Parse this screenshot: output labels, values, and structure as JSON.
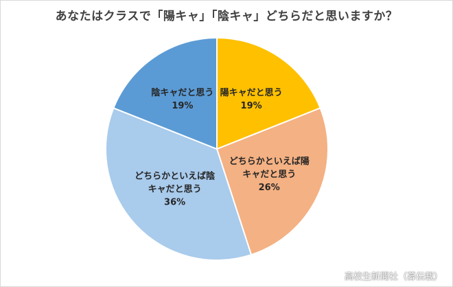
{
  "chart_data": {
    "type": "pie",
    "title": "あなたはクラスで「陽キャ」「陰キャ」どちらだと思いますか？",
    "slices": [
      {
        "label": "陽キャだと思う",
        "value": 19,
        "value_label": "19%",
        "color": "#ffc000"
      },
      {
        "label": "どちらかといえば陽キャだと思う",
        "value": 26,
        "value_label": "26%",
        "color": "#f4b183"
      },
      {
        "label": "どちらかといえば陰キャだと思う",
        "value": 36,
        "value_label": "36%",
        "color": "#a9cbec"
      },
      {
        "label": "陰キャだと思う",
        "value": 19,
        "value_label": "19%",
        "color": "#5b9bd5"
      }
    ],
    "start": "12 o'clock",
    "direction": "clockwise",
    "legend": "none"
  },
  "watermark": "高校生新聞社（募伝載）"
}
